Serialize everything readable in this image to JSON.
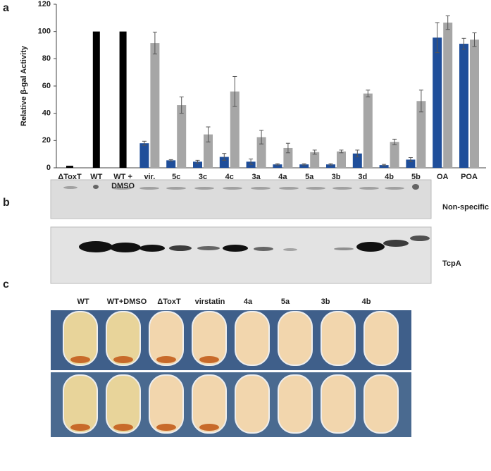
{
  "chart_data": {
    "type": "bar",
    "y_label": "Relative β-gal Activity",
    "categories": [
      "ΔToxT",
      "WT",
      "WT +\nDMSO",
      "vir.",
      "5c",
      "3c",
      "4c",
      "3a",
      "4a",
      "5a",
      "3b",
      "3d",
      "4b",
      "5b",
      "OA",
      "POA"
    ],
    "series": [
      {
        "color": "#000000",
        "values": [
          1.5,
          100,
          100,
          null,
          null,
          null,
          null,
          null,
          null,
          null,
          null,
          null,
          null,
          null,
          null,
          null
        ]
      },
      {
        "color": "#1f4e9a",
        "values": [
          null,
          null,
          null,
          18,
          5.5,
          4.5,
          8,
          4.5,
          2.5,
          2.5,
          2.5,
          10.5,
          2,
          6,
          95.5,
          91
        ],
        "errors": [
          null,
          null,
          null,
          1.5,
          0.5,
          1,
          2.5,
          2,
          0.5,
          0.5,
          0.5,
          2.5,
          0.5,
          1.5,
          11,
          4
        ]
      },
      {
        "color": "#a6a6a6",
        "values": [
          null,
          null,
          null,
          91.5,
          46,
          24.5,
          56,
          22.5,
          14.5,
          11.5,
          12,
          54.5,
          19,
          49,
          106.5,
          94
        ],
        "errors": [
          null,
          null,
          null,
          8,
          6,
          5.5,
          11,
          5,
          3.5,
          1.5,
          1,
          2.5,
          2,
          8,
          5,
          5
        ]
      }
    ],
    "ylim": [
      0,
      120
    ],
    "yticks": [
      0,
      20,
      40,
      60,
      80,
      100,
      120
    ],
    "grid": false
  },
  "panel_labels": [
    "a",
    "b",
    "c"
  ],
  "blot": {
    "bands": [
      "Non-specific",
      "TcpA"
    ]
  },
  "photo": {
    "labels": [
      "WT",
      "WT+DMSO",
      "ΔToxT",
      "virstatin",
      "4a",
      "5a",
      "3b",
      "4b"
    ]
  }
}
